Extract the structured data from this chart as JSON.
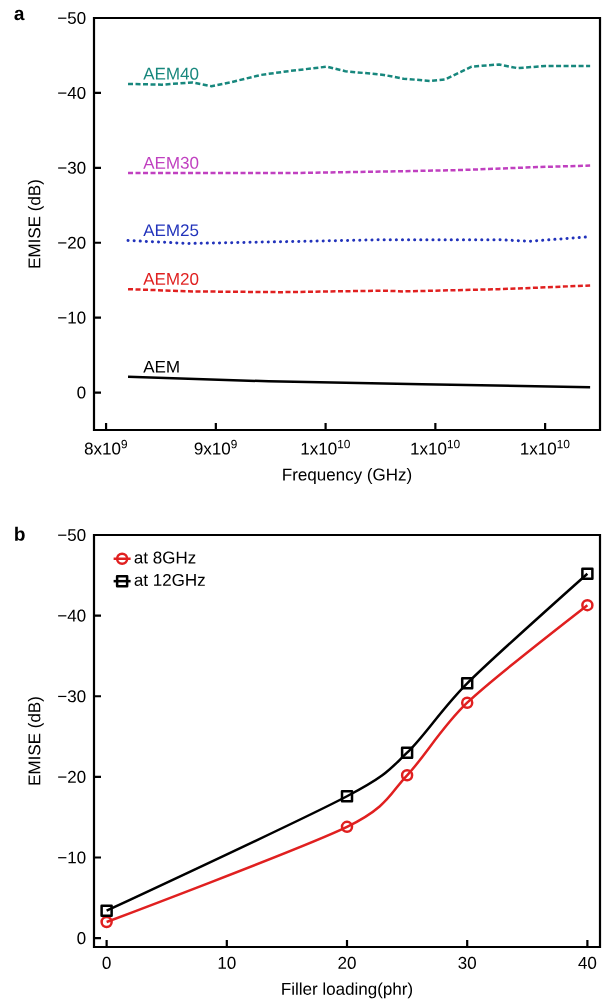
{
  "chart_data": [
    {
      "type": "line",
      "title": "a",
      "xlabel": "Frequency (GHz)",
      "ylabel": "EMISE (dB)",
      "xlim": [
        7890000000,
        12500000000
      ],
      "xticks": [
        {
          "value": 8000000000,
          "label": "8x10$^{9}$"
        },
        {
          "value": 9000000000,
          "label": "9x10$^{9}$"
        },
        {
          "value": 10000000000,
          "label": "1x10$^{10}$"
        },
        {
          "value": 11000000000,
          "label": "1x10$^{10}$"
        },
        {
          "value": 12000000000,
          "label": "1x10$^{10}$"
        }
      ],
      "ylim": [
        5,
        -50
      ],
      "yticks": [
        {
          "value": -50,
          "label": "−50"
        },
        {
          "value": -40,
          "label": "−40"
        },
        {
          "value": -30,
          "label": "−30"
        },
        {
          "value": -20,
          "label": "−20"
        },
        {
          "value": -10,
          "label": "−10"
        },
        0
      ],
      "series": [
        {
          "name": "AEM40",
          "color": "#17877d",
          "line_style": "dashed",
          "x": [
            8200000000,
            8510000000,
            8790000000,
            8960000000,
            9130000000,
            9410000000,
            9660000000,
            10010000000,
            10180000000,
            10530000000,
            10710000000,
            10950000000,
            11090000000,
            11330000000,
            11580000000,
            11750000000,
            12000000000,
            12410000000
          ],
          "values": [
            -41.2,
            -41.1,
            -41.4,
            -40.9,
            -41.4,
            -42.4,
            -42.9,
            -43.5,
            -42.9,
            -42.4,
            -41.9,
            -41.6,
            -41.8,
            -43.5,
            -43.8,
            -43.3,
            -43.6,
            -43.6
          ]
        },
        {
          "name": "AEM30",
          "color": "#c040c0",
          "line_style": "dashed",
          "x": [
            8200000000,
            9670000000,
            10530000000,
            11230000000,
            11930000000,
            12410000000
          ],
          "values": [
            -29.3,
            -29.3,
            -29.5,
            -29.7,
            -30.1,
            -30.3
          ]
        },
        {
          "name": "AEM25",
          "color": "#2233bb",
          "line_style": "dotted",
          "x": [
            8200000000,
            8750000000,
            9480000000,
            10530000000,
            11580000000,
            11860000000,
            12410000000
          ],
          "values": [
            -20.3,
            -19.9,
            -20.1,
            -20.4,
            -20.4,
            -20.2,
            -20.8
          ]
        },
        {
          "name": "AEM20",
          "color": "#e02020",
          "line_style": "dashed",
          "x": [
            8200000000,
            8790000000,
            9590000000,
            10530000000,
            10710000000,
            11580000000,
            11930000000,
            12410000000
          ],
          "values": [
            -13.8,
            -13.5,
            -13.4,
            -13.6,
            -13.5,
            -13.8,
            -14.0,
            -14.3
          ]
        },
        {
          "name": "AEM",
          "color": "#000000",
          "line_style": "solid",
          "x": [
            8200000000,
            9480000000,
            10880000000,
            12410000000
          ],
          "values": [
            -2.1,
            -1.5,
            -1.1,
            -0.7
          ]
        }
      ]
    },
    {
      "type": "line",
      "title": "b",
      "xlabel": "Filler loading(phr)",
      "ylabel": "EMISE (dB)",
      "xlim": [
        -1.05,
        41.05
      ],
      "xticks": [
        0,
        10,
        20,
        30,
        40
      ],
      "ylim": [
        1.1,
        -50
      ],
      "yticks": [
        {
          "value": -50,
          "label": "−50"
        },
        {
          "value": -40,
          "label": "−40"
        },
        {
          "value": -30,
          "label": "−30"
        },
        {
          "value": -20,
          "label": "−20"
        },
        {
          "value": -10,
          "label": "−10"
        },
        0
      ],
      "legend": "top left",
      "x": [
        0,
        20,
        25,
        30,
        40
      ],
      "series": [
        {
          "name": "at 8GHz",
          "color": "#e02020",
          "marker": "circle",
          "line_style": "solid",
          "values": [
            -2.0,
            -13.8,
            -20.2,
            -29.2,
            -41.3
          ]
        },
        {
          "name": "at 12GHz",
          "color": "#000000",
          "marker": "square",
          "line_style": "solid",
          "values": [
            -3.4,
            -17.6,
            -23.0,
            -31.6,
            -45.2
          ]
        }
      ]
    }
  ]
}
